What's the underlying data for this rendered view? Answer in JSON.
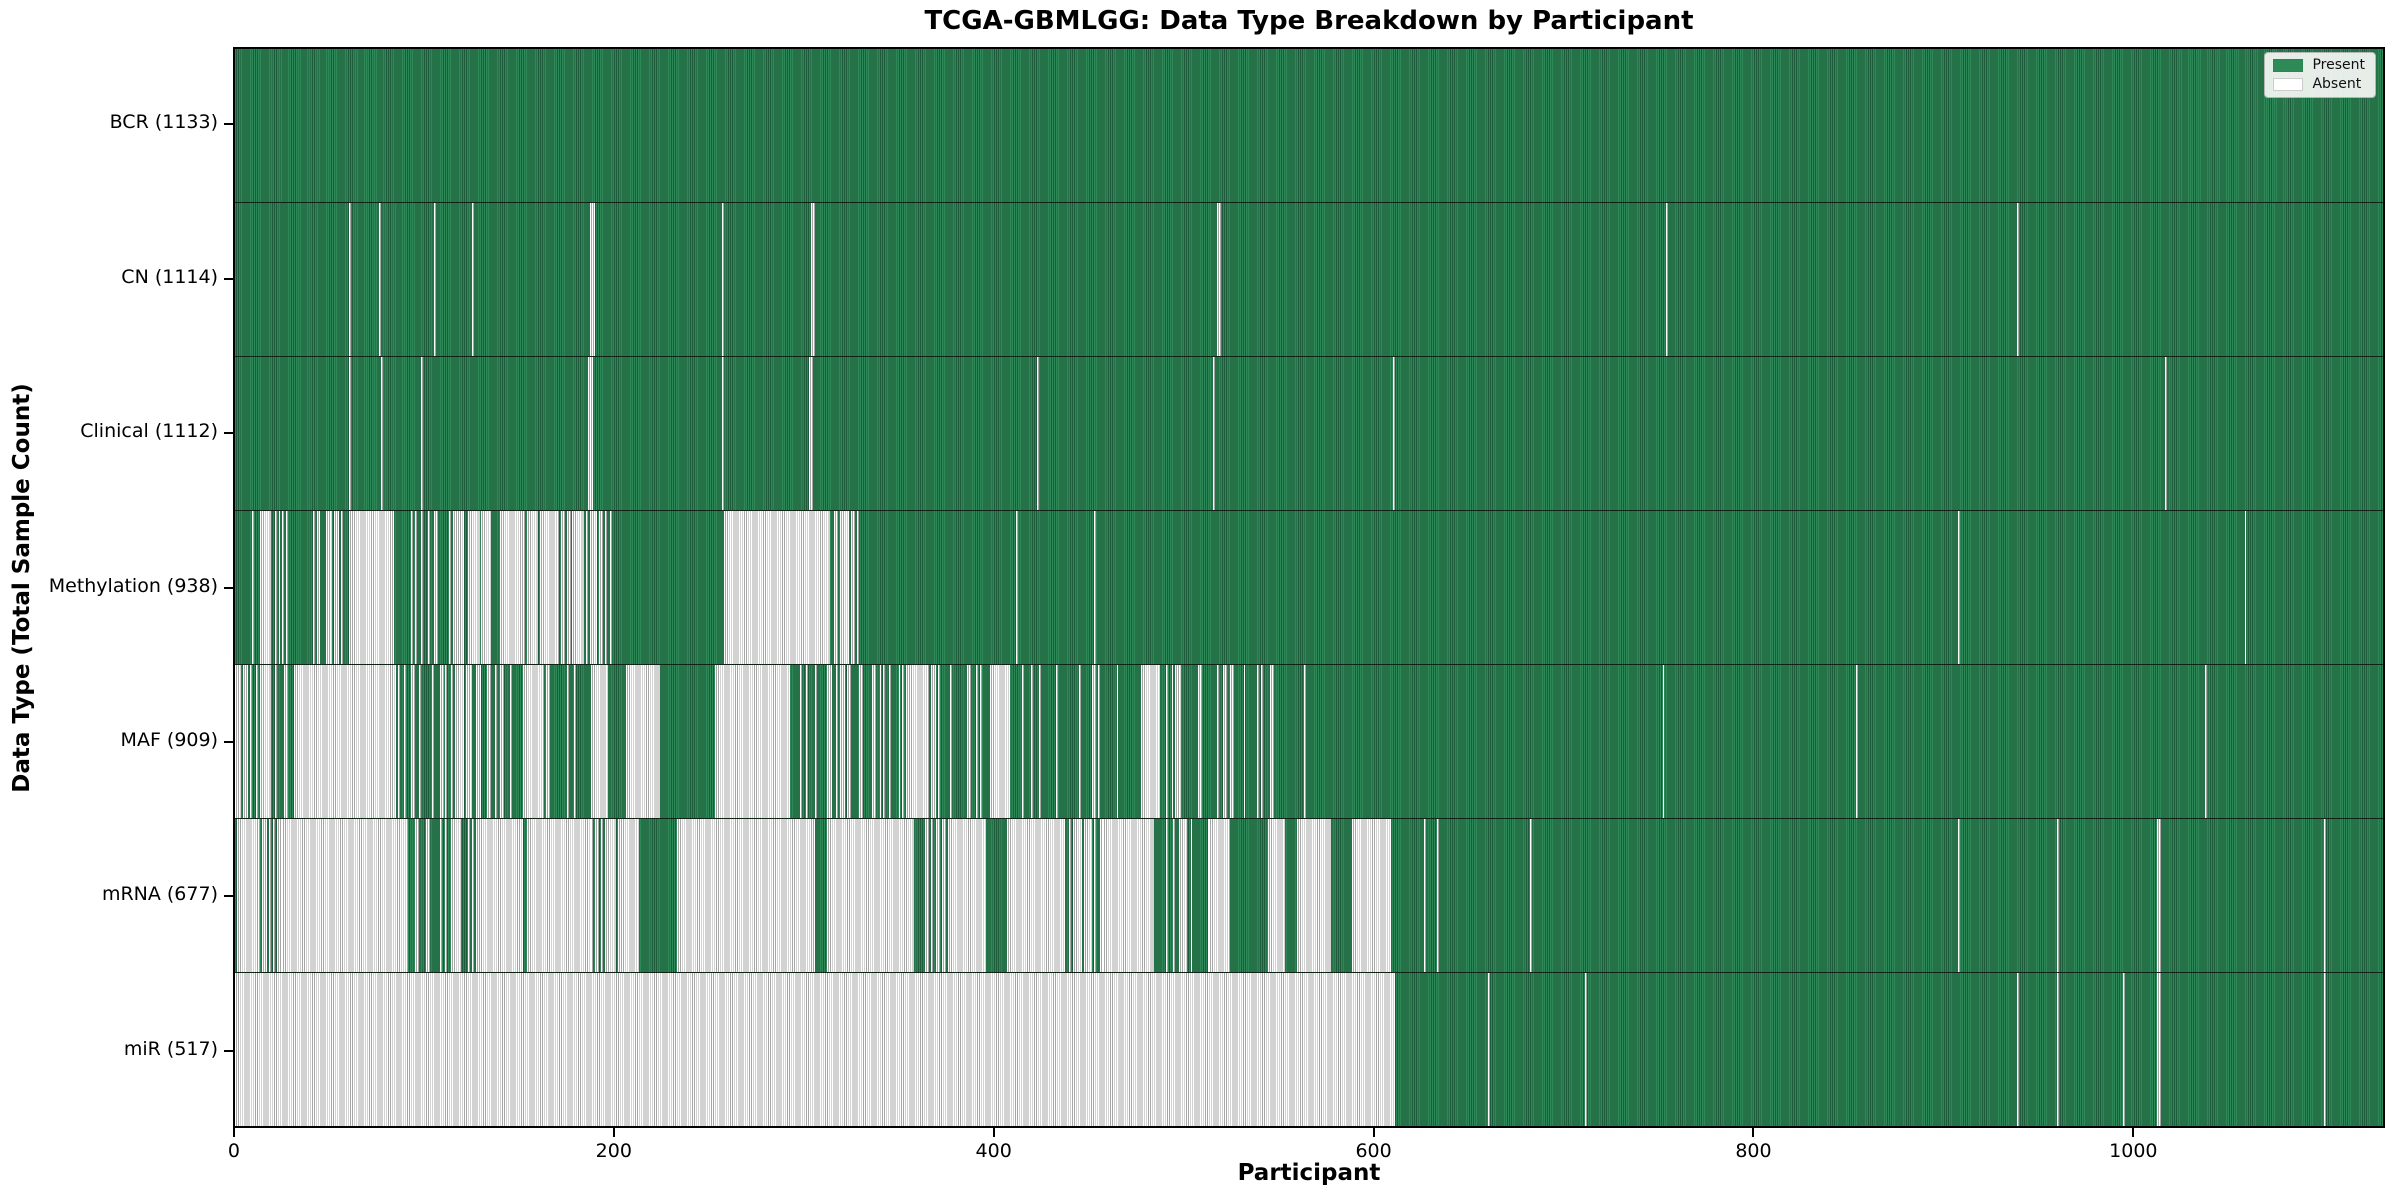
{
  "figure": {
    "title": "TCGA-GBMLGG: Data Type Breakdown by Participant",
    "xlabel": "Participant",
    "ylabel": "Data Type (Total Sample Count)"
  },
  "legend": {
    "items": [
      {
        "label": "Present",
        "color": "#2e8b57"
      },
      {
        "label": "Absent",
        "color": "#ffffff"
      }
    ]
  },
  "chart_data": {
    "type": "heatmap",
    "title": "TCGA-GBMLGG: Data Type Breakdown by Participant",
    "xlabel": "Participant",
    "ylabel": "Data Type (Total Sample Count)",
    "legend": [
      "Present",
      "Absent"
    ],
    "legend_position": "upper right",
    "colors": {
      "present_fill": "#2e8b57",
      "present_edge": "#1d5c3a",
      "absent_fill": "#ffffff",
      "absent_edge": "#a6a6a6",
      "row_divider": "#141414"
    },
    "n_participants": 1133,
    "x_ticks": [
      0,
      200,
      400,
      600,
      800,
      1000
    ],
    "x_range": [
      0,
      1133
    ],
    "grid": false,
    "note_gap_format": "gaps are [fromParticipant, toParticipant, absentFraction]; fraction omitted means fully absent; uncovered ranges are present",
    "rows": [
      {
        "label": "BCR (1133)",
        "total": 1133,
        "gaps": []
      },
      {
        "label": "CN (1114)",
        "total": 1114,
        "gaps": [
          [
            60,
            61
          ],
          [
            76,
            77
          ],
          [
            105,
            106
          ],
          [
            125,
            126
          ],
          [
            187,
            190
          ],
          [
            257,
            258
          ],
          [
            304,
            306
          ],
          [
            518,
            520
          ],
          [
            755,
            756
          ],
          [
            940,
            941
          ]
        ]
      },
      {
        "label": "Clinical (1112)",
        "total": 1112,
        "gaps": [
          [
            60,
            61
          ],
          [
            77,
            78
          ],
          [
            98,
            99
          ],
          [
            186,
            189
          ],
          [
            257,
            258
          ],
          [
            303,
            305
          ],
          [
            423,
            424
          ],
          [
            516,
            517
          ],
          [
            611,
            612
          ],
          [
            1018,
            1019
          ]
        ]
      },
      {
        "label": "Methylation (938)",
        "total": 938,
        "gaps": [
          [
            9,
            28,
            0.5
          ],
          [
            41,
            61,
            0.55
          ],
          [
            61,
            84,
            1
          ],
          [
            84,
            101,
            0.12
          ],
          [
            101,
            117,
            0.5
          ],
          [
            117,
            136,
            0.7
          ],
          [
            140,
            152,
            1
          ],
          [
            152,
            161,
            0.5
          ],
          [
            161,
            170,
            1
          ],
          [
            170,
            199,
            0.75
          ],
          [
            258,
            314,
            1
          ],
          [
            314,
            329,
            0.5
          ],
          [
            412,
            413,
            1
          ],
          [
            453,
            454,
            1
          ],
          [
            909,
            910,
            1
          ],
          [
            1060,
            1061,
            1
          ]
        ]
      },
      {
        "label": "MAF (909)",
        "total": 909,
        "gaps": [
          [
            0,
            22,
            0.7
          ],
          [
            22,
            31,
            0.5
          ],
          [
            31,
            85,
            1
          ],
          [
            85,
            112,
            0.25
          ],
          [
            112,
            130,
            0.5
          ],
          [
            130,
            152,
            0.3
          ],
          [
            152,
            163,
            1
          ],
          [
            163,
            188,
            0.3
          ],
          [
            188,
            197,
            1
          ],
          [
            206,
            224,
            1
          ],
          [
            253,
            293,
            1
          ],
          [
            293,
            308,
            0.5
          ],
          [
            308,
            355,
            0.3
          ],
          [
            355,
            365,
            1
          ],
          [
            365,
            398,
            0.3
          ],
          [
            398,
            409,
            1
          ],
          [
            409,
            478,
            0.15
          ],
          [
            478,
            488,
            1
          ],
          [
            488,
            567,
            0.2
          ],
          [
            753,
            754,
            1
          ],
          [
            855,
            856,
            1
          ],
          [
            1039,
            1040,
            1
          ]
        ]
      },
      {
        "label": "mRNA (677)",
        "total": 677,
        "gaps": [
          [
            0,
            25,
            0.85
          ],
          [
            25,
            90,
            1
          ],
          [
            90,
            128,
            0.5
          ],
          [
            128,
            152,
            1
          ],
          [
            154,
            188,
            1
          ],
          [
            188,
            203,
            0.5
          ],
          [
            203,
            213,
            1
          ],
          [
            233,
            306,
            1
          ],
          [
            312,
            358,
            1
          ],
          [
            358,
            376,
            0.5
          ],
          [
            376,
            396,
            1
          ],
          [
            407,
            438,
            1
          ],
          [
            438,
            458,
            0.5
          ],
          [
            458,
            485,
            1
          ],
          [
            485,
            514,
            0.35
          ],
          [
            514,
            525,
            1
          ],
          [
            545,
            554,
            1
          ],
          [
            560,
            578,
            1
          ],
          [
            589,
            610,
            1
          ],
          [
            627,
            628,
            1
          ],
          [
            634,
            635,
            1
          ],
          [
            683,
            684,
            1
          ],
          [
            909,
            910,
            1
          ],
          [
            961,
            962,
            1
          ],
          [
            1014,
            1016,
            1
          ],
          [
            1102,
            1103,
            1
          ]
        ]
      },
      {
        "label": "miR (517)",
        "total": 517,
        "gaps": [
          [
            0,
            612,
            1
          ],
          [
            661,
            662,
            1
          ],
          [
            712,
            713,
            1
          ],
          [
            940,
            941,
            1
          ],
          [
            961,
            962,
            1
          ],
          [
            996,
            997,
            1
          ],
          [
            1014,
            1016,
            1
          ],
          [
            1102,
            1103,
            1
          ]
        ]
      }
    ]
  }
}
